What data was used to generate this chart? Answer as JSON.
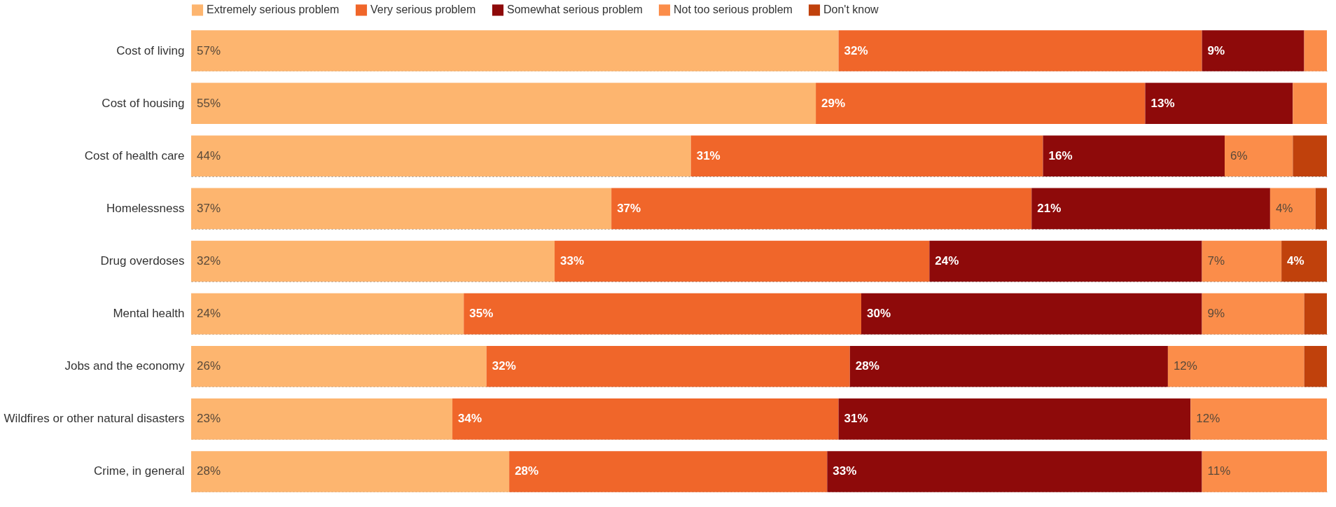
{
  "chart_data": {
    "type": "bar",
    "orientation": "horizontal",
    "stacked": true,
    "categories": [
      "Cost of living",
      "Cost of housing",
      "Cost of health care",
      "Homelessness",
      "Drug overdoses",
      "Mental health",
      "Jobs and the economy",
      "Wildfires or other natural disasters",
      "Crime, in general"
    ],
    "series": [
      {
        "name": "Extremely serious problem",
        "color": "#fdb56f",
        "values": [
          57,
          55,
          44,
          37,
          32,
          24,
          26,
          23,
          28
        ],
        "value_labels": [
          "57%",
          "55%",
          "44%",
          "37%",
          "32%",
          "24%",
          "26%",
          "23%",
          "28%"
        ]
      },
      {
        "name": "Very serious problem",
        "color": "#f0662a",
        "values": [
          32,
          29,
          31,
          37,
          33,
          35,
          32,
          34,
          28
        ],
        "value_labels": [
          "32%",
          "29%",
          "31%",
          "37%",
          "33%",
          "35%",
          "32%",
          "34%",
          "28%"
        ]
      },
      {
        "name": "Somewhat serious problem",
        "color": "#8e0a0a",
        "values": [
          9,
          13,
          16,
          21,
          24,
          30,
          28,
          31,
          33
        ],
        "value_labels": [
          "9%",
          "13%",
          "16%",
          "21%",
          "24%",
          "30%",
          "28%",
          "31%",
          "33%"
        ]
      },
      {
        "name": "Not too serious problem",
        "color": "#fb8d4a",
        "values": [
          2,
          3,
          6,
          4,
          7,
          9,
          12,
          12,
          11
        ],
        "value_labels": [
          null,
          null,
          "6%",
          "4%",
          "7%",
          "9%",
          "12%",
          "12%",
          "11%"
        ]
      },
      {
        "name": "Don't know",
        "color": "#c0410c",
        "values": [
          null,
          null,
          3,
          1,
          4,
          2,
          2,
          null,
          null
        ],
        "value_labels": [
          null,
          null,
          null,
          null,
          "4%",
          null,
          null,
          null,
          null
        ]
      }
    ],
    "xlim": [
      0,
      100
    ],
    "tick_labels": "y",
    "grid": "y",
    "legend": "top left"
  }
}
